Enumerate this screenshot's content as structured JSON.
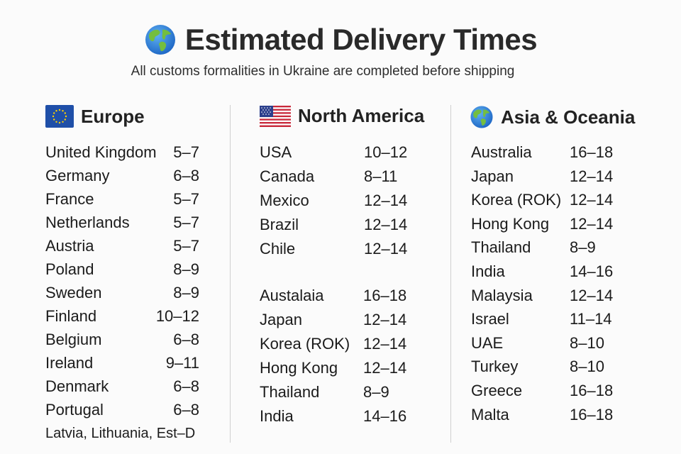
{
  "header": {
    "title": "Estimated Delivery Times",
    "subtitle": "All customs formalities in Ukraine are completed before shipping",
    "icon": "globe-icon"
  },
  "columns": [
    {
      "name": "Europe",
      "icon": "eu-flag-icon",
      "rows": [
        {
          "country": "United Kingdom",
          "days": "5–7"
        },
        {
          "country": "Germany",
          "days": "6–8"
        },
        {
          "country": "France",
          "days": "5–7"
        },
        {
          "country": "Netherlands",
          "days": "5–7"
        },
        {
          "country": "Austria",
          "days": "5–7"
        },
        {
          "country": "Poland",
          "days": "8–9"
        },
        {
          "country": "Sweden",
          "days": "8–9"
        },
        {
          "country": "Finland",
          "days": "10–12"
        },
        {
          "country": "Belgium",
          "days": "6–8"
        },
        {
          "country": "Ireland",
          "days": "9–11"
        },
        {
          "country": "Denmark",
          "days": "6–8"
        },
        {
          "country": "Portugal",
          "days": "6–8"
        }
      ],
      "footer": "Latvia, Lithuania, Est–D"
    },
    {
      "name": "North America",
      "icon": "us-flag-icon",
      "rows": [
        {
          "country": "USA",
          "days": "10–12"
        },
        {
          "country": "Canada",
          "days": "8–11"
        },
        {
          "country": "Mexico",
          "days": "12–14"
        },
        {
          "country": "Brazil",
          "days": "12–14"
        },
        {
          "country": "Chile",
          "days": "12–14"
        }
      ],
      "rows2": [
        {
          "country": "Austalaia",
          "days": "16–18"
        },
        {
          "country": "Japan",
          "days": "12–14"
        },
        {
          "country": "Korea (ROK)",
          "days": "12–14"
        },
        {
          "country": "Hong Kong",
          "days": "12–14"
        },
        {
          "country": "Thailand",
          "days": "8–9"
        },
        {
          "country": "India",
          "days": "14–16"
        }
      ]
    },
    {
      "name": "Asia & Oceania",
      "icon": "globe-icon",
      "rows": [
        {
          "country": "Australia",
          "days": "16–18"
        },
        {
          "country": "Japan",
          "days": "12–14"
        },
        {
          "country": "Korea (ROK)",
          "days": "12–14"
        },
        {
          "country": "Hong Kong",
          "days": "12–14"
        },
        {
          "country": "Thailand",
          "days": "8–9"
        },
        {
          "country": "India",
          "days": "14–16"
        },
        {
          "country": "Malaysia",
          "days": "12–14"
        },
        {
          "country": "Israel",
          "days": "11–14"
        },
        {
          "country": "UAE",
          "days": "8–10"
        },
        {
          "country": "Turkey",
          "days": "8–10"
        },
        {
          "country": "Greece",
          "days": "16–18"
        },
        {
          "country": "Malta",
          "days": "16–18"
        }
      ]
    }
  ],
  "colors": {
    "eu_blue": "#1f4fa8",
    "eu_star": "#ffd200",
    "us_red": "#c8283a",
    "us_blue": "#2b3f8c",
    "globe_ocean": "#2a7fd8",
    "globe_land": "#6cb83e"
  }
}
